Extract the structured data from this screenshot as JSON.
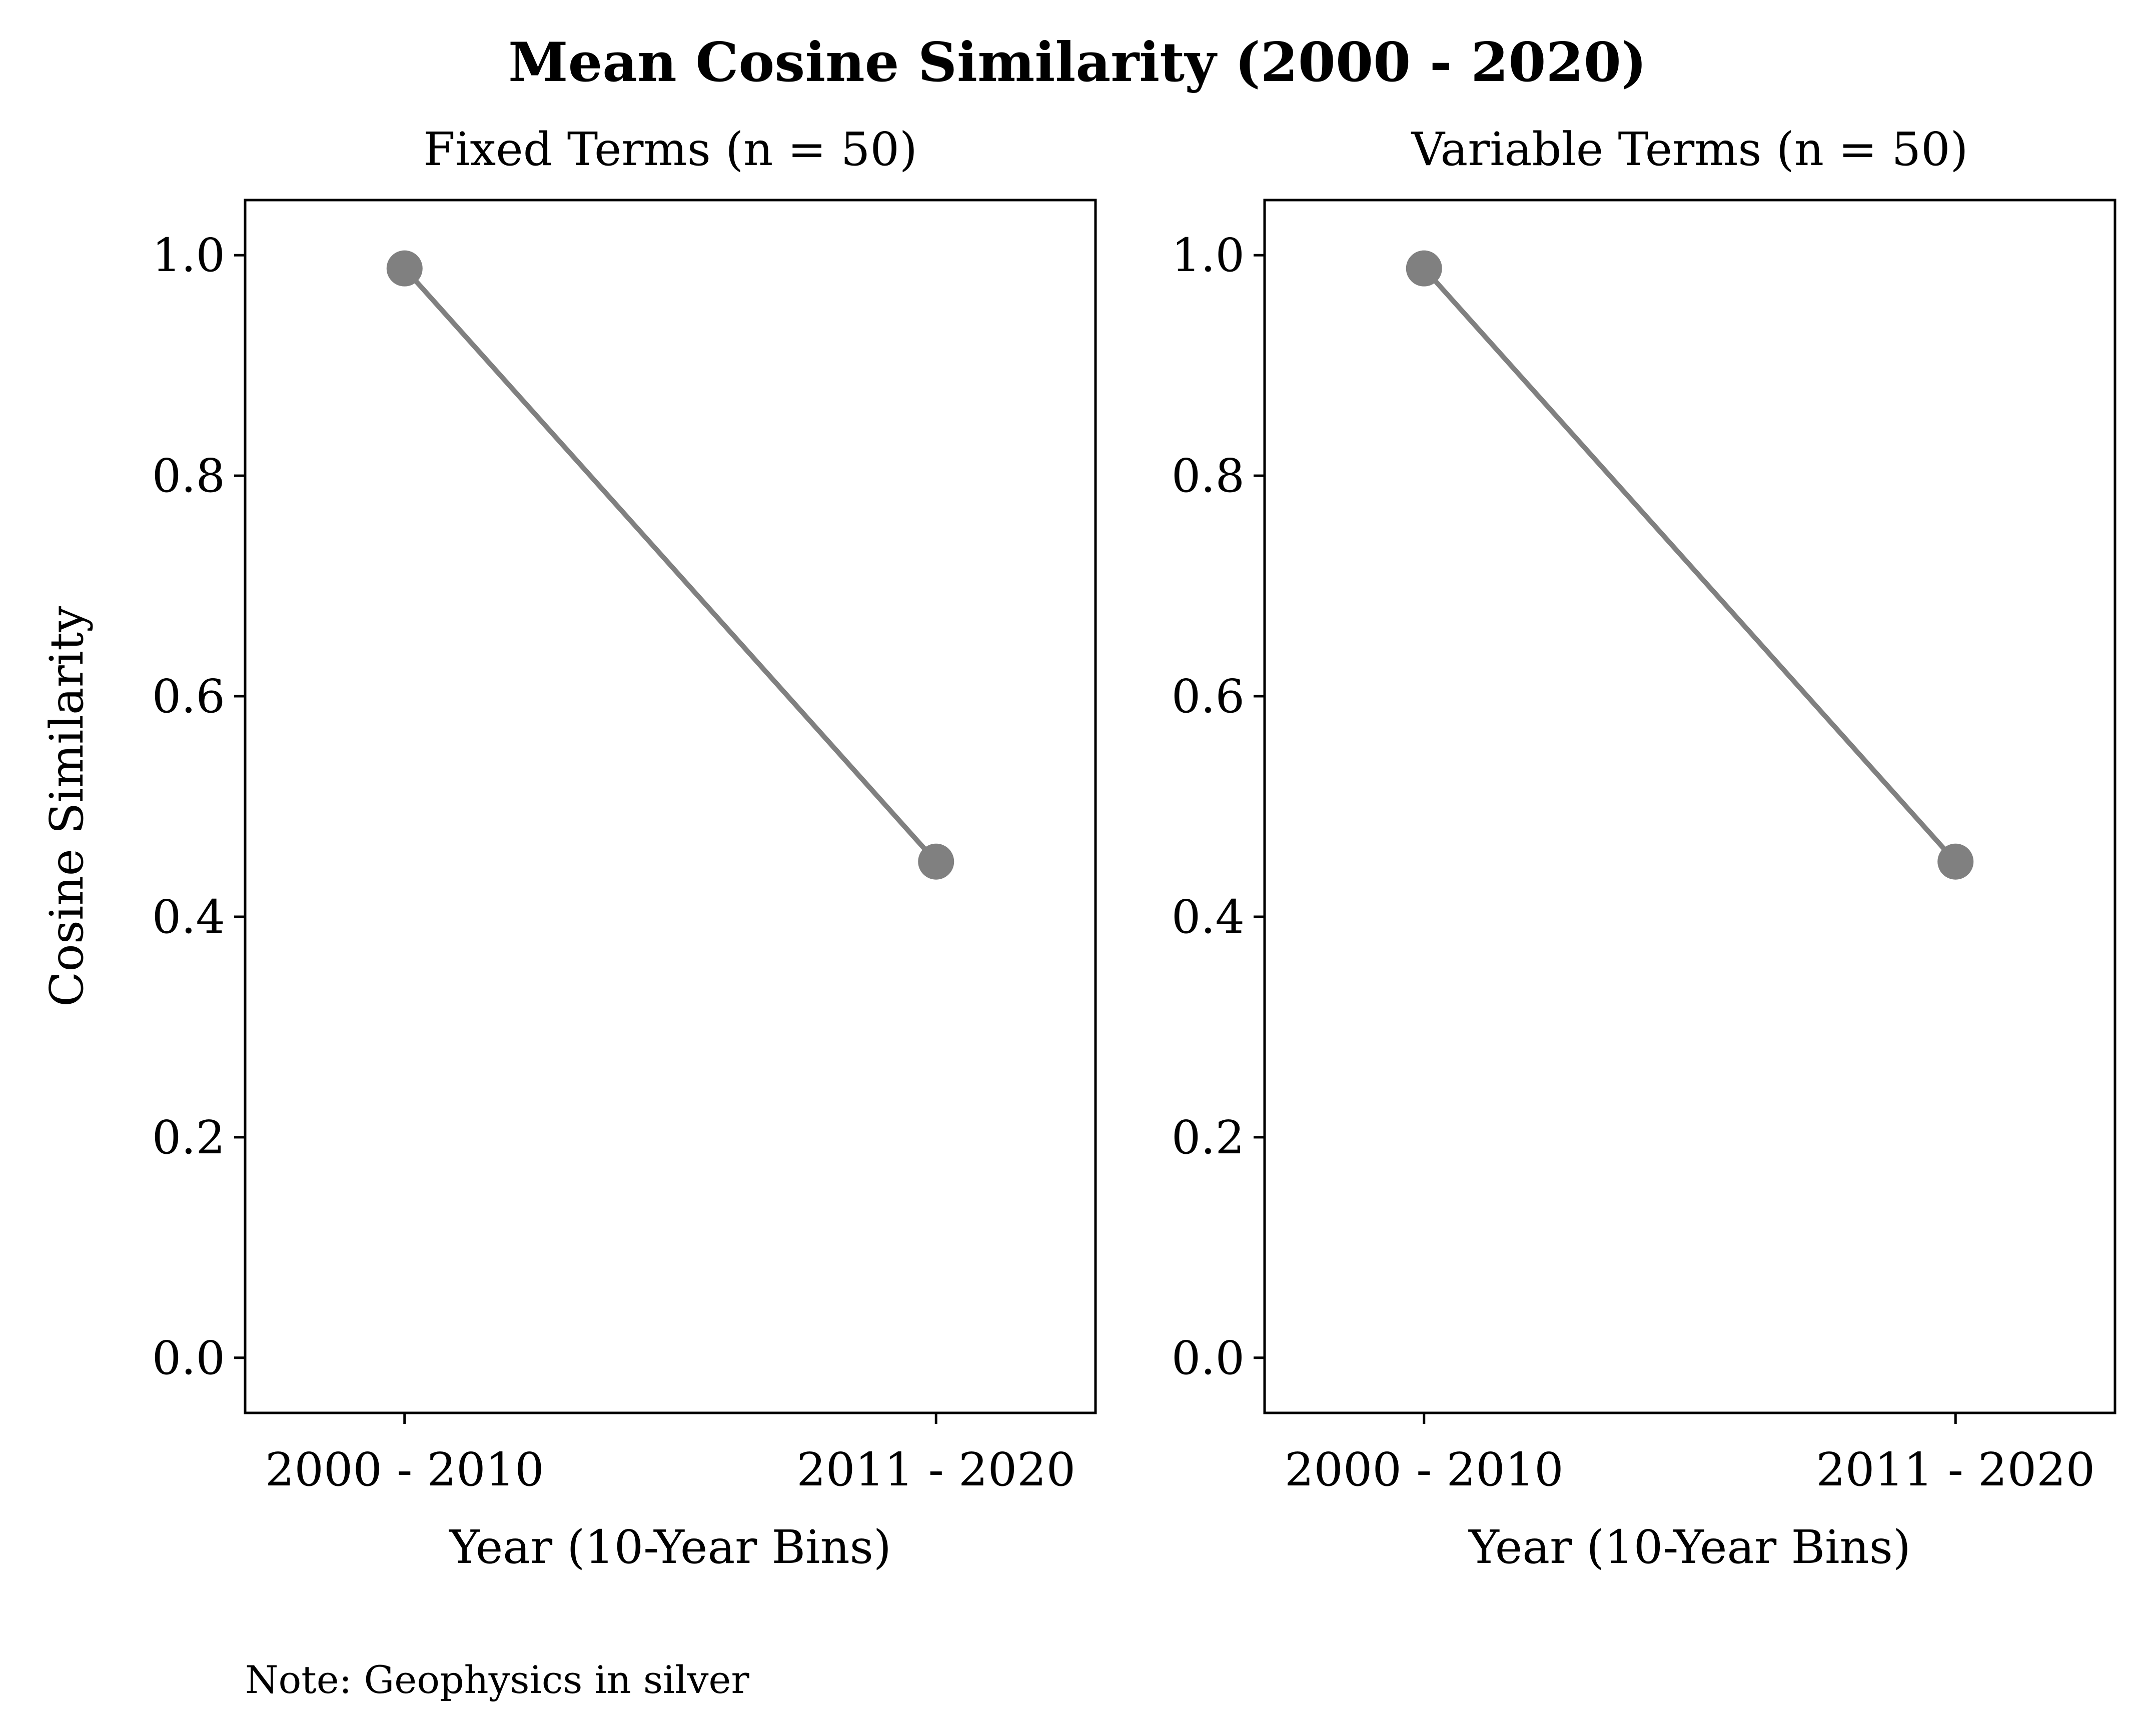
{
  "figure": {
    "title": "Mean Cosine Similarity (2000 - 2020)",
    "note": "Note: Geophysics in silver"
  },
  "chart_data": [
    {
      "type": "line",
      "title": "Fixed Terms (n = 50)",
      "xlabel": "Year (10-Year Bins)",
      "ylabel": "Cosine Similarity",
      "categories": [
        "2000 - 2010",
        "2011 - 2020"
      ],
      "series": [
        {
          "values": [
            0.988,
            0.45
          ],
          "color": "#808080"
        }
      ],
      "ylim": [
        -0.05,
        1.05
      ],
      "yticks": [
        "0.0",
        "0.2",
        "0.4",
        "0.6",
        "0.8",
        "1.0"
      ],
      "grid": false,
      "legend": "none"
    },
    {
      "type": "line",
      "title": "Variable Terms (n = 50)",
      "xlabel": "Year (10-Year Bins)",
      "ylabel": "",
      "categories": [
        "2000 - 2010",
        "2011 - 2020"
      ],
      "series": [
        {
          "values": [
            0.988,
            0.45
          ],
          "color": "#808080"
        }
      ],
      "ylim": [
        -0.05,
        1.05
      ],
      "yticks": [
        "0.0",
        "0.2",
        "0.4",
        "0.6",
        "0.8",
        "1.0"
      ],
      "grid": false,
      "legend": "none"
    }
  ]
}
